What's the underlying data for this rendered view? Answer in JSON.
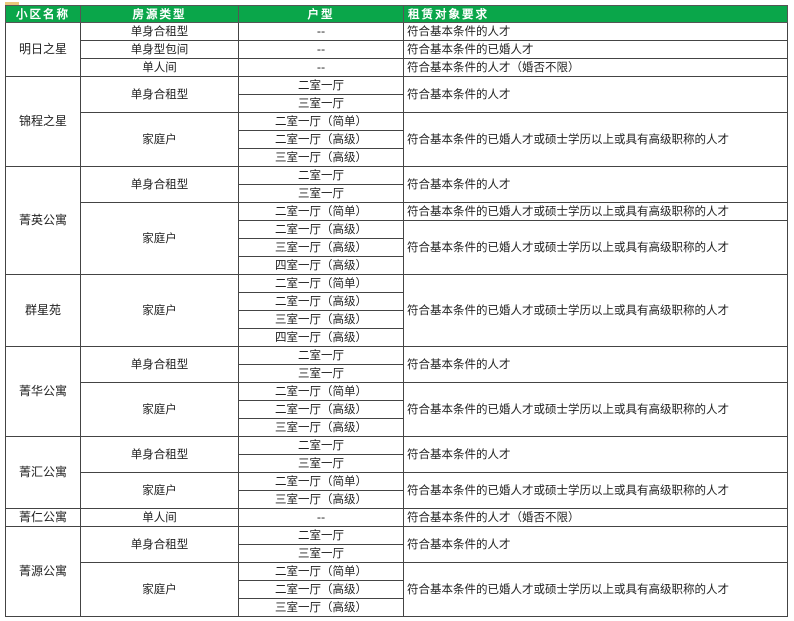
{
  "header": {
    "estate": "小区名称",
    "type": "房源类型",
    "layout": "户型",
    "requirement": "租赁对象要求"
  },
  "colors": {
    "header_bg": "#0aa64a",
    "header_text": "#ffffff",
    "border": "#444444"
  },
  "estates": [
    {
      "name": "明日之星",
      "groups": [
        {
          "type": "单身合租型",
          "units": [
            "--"
          ],
          "reqs": [
            {
              "text": "符合基本条件的人才",
              "span": 1
            }
          ]
        },
        {
          "type": "单身型包间",
          "units": [
            "--"
          ],
          "reqs": [
            {
              "text": "符合基本条件的已婚人才",
              "span": 1
            }
          ]
        },
        {
          "type": "单人间",
          "units": [
            "--"
          ],
          "reqs": [
            {
              "text": "符合基本条件的人才（婚否不限）",
              "span": 1
            }
          ]
        }
      ]
    },
    {
      "name": "锦程之星",
      "groups": [
        {
          "type": "单身合租型",
          "units": [
            "二室一厅",
            "三室一厅"
          ],
          "reqs": [
            {
              "text": "符合基本条件的人才",
              "span": 2
            }
          ]
        },
        {
          "type": "家庭户",
          "units": [
            "二室一厅（简单）",
            "二室一厅（高级）",
            "三室一厅（高级）"
          ],
          "reqs": [
            {
              "text": "符合基本条件的已婚人才或硕士学历以上或具有高级职称的人才",
              "span": 3
            }
          ]
        }
      ]
    },
    {
      "name": "菁英公寓",
      "groups": [
        {
          "type": "单身合租型",
          "units": [
            "二室一厅",
            "三室一厅"
          ],
          "reqs": [
            {
              "text": "符合基本条件的人才",
              "span": 2
            }
          ]
        },
        {
          "type": "家庭户",
          "units": [
            "二室一厅（简单）",
            "二室一厅（高级）",
            "三室一厅（高级）",
            "四室一厅（高级）"
          ],
          "reqs": [
            {
              "text": "符合基本条件的已婚人才或硕士学历以上或具有高级职称的人才",
              "span": 1
            },
            {
              "text": "符合基本条件的已婚人才或硕士学历以上或具有高级职称的人才",
              "span": 3
            }
          ]
        }
      ]
    },
    {
      "name": "群星苑",
      "groups": [
        {
          "type": "家庭户",
          "units": [
            "二室一厅（简单）",
            "二室一厅（高级）",
            "三室一厅（高级）",
            "四室一厅（高级）"
          ],
          "reqs": [
            {
              "text": "符合基本条件的已婚人才或硕士学历以上或具有高级职称的人才",
              "span": 4
            }
          ]
        }
      ]
    },
    {
      "name": "菁华公寓",
      "groups": [
        {
          "type": "单身合租型",
          "units": [
            "二室一厅",
            "三室一厅"
          ],
          "reqs": [
            {
              "text": "符合基本条件的人才",
              "span": 2
            }
          ]
        },
        {
          "type": "家庭户",
          "units": [
            "二室一厅（简单）",
            "二室一厅（高级）",
            "三室一厅（高级）"
          ],
          "reqs": [
            {
              "text": "符合基本条件的已婚人才或硕士学历以上或具有高级职称的人才",
              "span": 3
            }
          ]
        }
      ]
    },
    {
      "name": "菁汇公寓",
      "groups": [
        {
          "type": "单身合租型",
          "units": [
            "二室一厅",
            "三室一厅"
          ],
          "reqs": [
            {
              "text": "符合基本条件的人才",
              "span": 2
            }
          ]
        },
        {
          "type": "家庭户",
          "units": [
            "二室一厅（简单）",
            "三室一厅（高级）"
          ],
          "reqs": [
            {
              "text": "符合基本条件的已婚人才或硕士学历以上或具有高级职称的人才",
              "span": 2
            }
          ]
        }
      ]
    },
    {
      "name": "菁仁公寓",
      "groups": [
        {
          "type": "单人间",
          "units": [
            "--"
          ],
          "reqs": [
            {
              "text": "符合基本条件的人才（婚否不限）",
              "span": 1
            }
          ]
        }
      ]
    },
    {
      "name": "菁源公寓",
      "groups": [
        {
          "type": "单身合租型",
          "units": [
            "二室一厅",
            "三室一厅"
          ],
          "reqs": [
            {
              "text": "符合基本条件的人才",
              "span": 2
            }
          ]
        },
        {
          "type": "家庭户",
          "units": [
            "二室一厅（简单）",
            "二室一厅（高级）",
            "三室一厅（高级）"
          ],
          "reqs": [
            {
              "text": "符合基本条件的已婚人才或硕士学历以上或具有高级职称的人才",
              "span": 3
            }
          ]
        }
      ]
    }
  ]
}
